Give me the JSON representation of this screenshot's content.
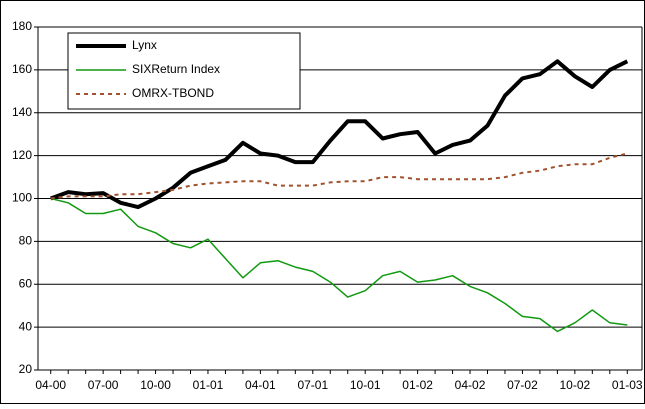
{
  "chart_data": {
    "type": "line",
    "categories": [
      "04-00",
      null,
      null,
      "07-00",
      null,
      null,
      "10-00",
      null,
      null,
      "01-01",
      null,
      null,
      "04-01",
      null,
      null,
      "07-01",
      null,
      null,
      "10-01",
      null,
      null,
      "01-02",
      null,
      null,
      "04-02",
      null,
      null,
      "07-02",
      null,
      null,
      "10-02",
      null,
      null,
      "01-03"
    ],
    "series": [
      {
        "name": "Lynx",
        "color": "#000000",
        "width": 4,
        "dash": false,
        "values": [
          100,
          103,
          102,
          102.5,
          98,
          96,
          100,
          105,
          112,
          115,
          118,
          126,
          121,
          120,
          117,
          117,
          127,
          136,
          136,
          128,
          130,
          131,
          121,
          125,
          127,
          134,
          148,
          156,
          158,
          164,
          157,
          152,
          160,
          164
        ]
      },
      {
        "name": "SIXReturn Index",
        "color": "#119911",
        "width": 1.5,
        "dash": false,
        "values": [
          100,
          98,
          93,
          93,
          95,
          87,
          84,
          79,
          77,
          81,
          72,
          63,
          70,
          71,
          68,
          66,
          61,
          54,
          57,
          64,
          66,
          61,
          62,
          64,
          59,
          56,
          51,
          45,
          44,
          38,
          42,
          48,
          42,
          41
        ]
      },
      {
        "name": "OMRX-TBOND",
        "color": "#a0522d",
        "width": 2,
        "dash": true,
        "values": [
          100,
          101,
          101,
          101,
          102,
          102,
          103,
          104,
          106,
          107,
          107.5,
          108,
          108,
          106,
          106,
          106,
          107.5,
          108,
          108,
          110,
          110,
          109,
          109,
          109,
          109,
          109,
          110,
          112,
          113,
          115,
          116,
          116,
          119,
          121
        ]
      }
    ],
    "ylim": [
      20,
      180
    ],
    "yticks": [
      20,
      40,
      60,
      80,
      100,
      120,
      140,
      160,
      180
    ],
    "grid": true,
    "legend": "upper left"
  }
}
